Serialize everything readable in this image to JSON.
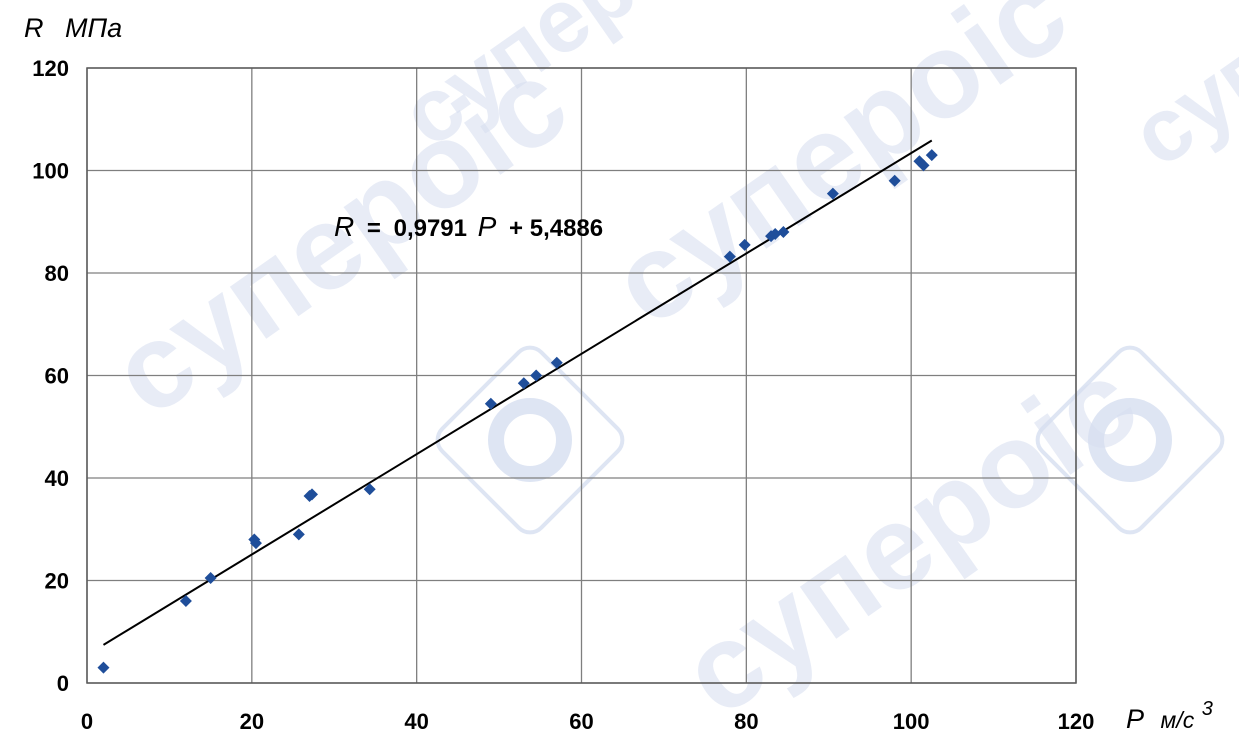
{
  "chart_data": {
    "type": "scatter",
    "xlim": [
      0,
      120
    ],
    "ylim": [
      0,
      120
    ],
    "x_ticks": [
      0,
      20,
      40,
      60,
      80,
      100,
      120
    ],
    "y_ticks": [
      0,
      20,
      40,
      60,
      80,
      100,
      120
    ],
    "ylabel": {
      "var": "R",
      "unit": "МПа"
    },
    "xlabel": {
      "var": "P",
      "unit": "м/с",
      "unit_exp": "3"
    },
    "grid": true,
    "points": [
      [
        2,
        3
      ],
      [
        12,
        16
      ],
      [
        15,
        20.5
      ],
      [
        20.3,
        28
      ],
      [
        20.5,
        27.3
      ],
      [
        25.7,
        29
      ],
      [
        27,
        36.5
      ],
      [
        27.3,
        36.8
      ],
      [
        34.3,
        37.8
      ],
      [
        49,
        54.5
      ],
      [
        53,
        58.5
      ],
      [
        54.5,
        60
      ],
      [
        57,
        62.5
      ],
      [
        78,
        83.2
      ],
      [
        79.8,
        85.5
      ],
      [
        83,
        87.2
      ],
      [
        83.5,
        87.6
      ],
      [
        84.5,
        88
      ],
      [
        90.5,
        95.5
      ],
      [
        98,
        98
      ],
      [
        101,
        101.8
      ],
      [
        101.5,
        101
      ],
      [
        102.5,
        103
      ]
    ],
    "trendline": {
      "slope": 0.9791,
      "intercept": 5.4886,
      "x_range": [
        2,
        102.5
      ]
    },
    "equation": {
      "lhs": "R",
      "op": "=",
      "coef": "0,9791",
      "var": "P",
      "rest": "+ 5,4886"
    },
    "colors": {
      "points": "#1f4e9a",
      "line": "#000000",
      "grid": "#7f7f7f"
    }
  },
  "watermark": {
    "text": "супеpoic"
  }
}
